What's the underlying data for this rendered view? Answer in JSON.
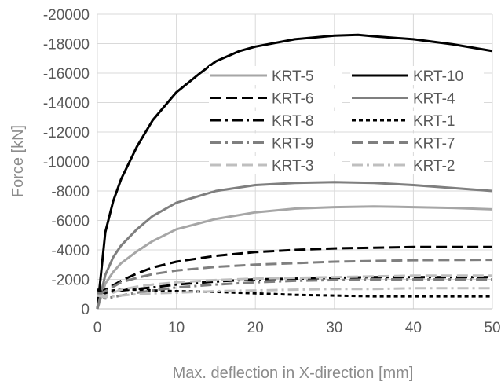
{
  "chart_data": {
    "type": "line",
    "xlabel": "Max. deflection in X-direction [mm]",
    "ylabel": "Force [kN]",
    "xlim": [
      0,
      50
    ],
    "ylim": [
      0,
      -20000
    ],
    "x_ticks": [
      0,
      10,
      20,
      30,
      40,
      50
    ],
    "y_ticks": [
      0,
      -2000,
      -4000,
      -6000,
      -8000,
      -10000,
      -12000,
      -14000,
      -16000,
      -18000,
      -20000
    ],
    "grid": true,
    "legend": "inside-top-right, two columns",
    "series": [
      {
        "name": "KRT-5",
        "color": "#a6a6a6",
        "dash": "solid",
        "width": 3,
        "x": [
          0,
          1,
          2,
          3,
          5,
          7,
          10,
          15,
          20,
          25,
          30,
          35,
          40,
          45,
          50
        ],
        "y": [
          0,
          -1700,
          -2500,
          -3100,
          -3900,
          -4600,
          -5400,
          -6100,
          -6550,
          -6800,
          -6900,
          -6950,
          -6900,
          -6850,
          -6750
        ]
      },
      {
        "name": "KRT-10",
        "color": "#000000",
        "dash": "solid",
        "width": 3,
        "x": [
          0,
          1,
          2,
          3,
          5,
          7,
          10,
          13,
          15,
          18,
          20,
          25,
          30,
          33,
          35,
          40,
          45,
          50
        ],
        "y": [
          0,
          -5200,
          -7300,
          -8800,
          -11000,
          -12800,
          -14700,
          -16000,
          -16800,
          -17500,
          -17800,
          -18300,
          -18550,
          -18600,
          -18500,
          -18300,
          -17950,
          -17500
        ]
      },
      {
        "name": "KRT-6",
        "color": "#000000",
        "dash": "14,6",
        "width": 3,
        "x": [
          0,
          1,
          2,
          3,
          5,
          7,
          10,
          15,
          20,
          25,
          30,
          35,
          40,
          45,
          50
        ],
        "y": [
          -1100,
          -1300,
          -1600,
          -1900,
          -2400,
          -2800,
          -3200,
          -3600,
          -3850,
          -4000,
          -4100,
          -4150,
          -4200,
          -4200,
          -4200
        ]
      },
      {
        "name": "KRT-4",
        "color": "#7f7f7f",
        "dash": "solid",
        "width": 3,
        "x": [
          0,
          1,
          2,
          3,
          5,
          7,
          10,
          15,
          20,
          25,
          30,
          35,
          40,
          45,
          50
        ],
        "y": [
          0,
          -2300,
          -3500,
          -4300,
          -5400,
          -6300,
          -7200,
          -8000,
          -8400,
          -8550,
          -8600,
          -8550,
          -8400,
          -8200,
          -8000
        ]
      },
      {
        "name": "KRT-8",
        "color": "#000000",
        "dash": "14,5,3,5",
        "width": 3,
        "x": [
          0,
          1,
          2,
          3,
          5,
          7,
          10,
          15,
          20,
          25,
          30,
          35,
          40,
          45,
          50
        ],
        "y": [
          -1300,
          -1050,
          -1150,
          -1250,
          -1350,
          -1450,
          -1650,
          -1850,
          -2000,
          -2050,
          -2100,
          -2150,
          -2150,
          -2150,
          -2150
        ]
      },
      {
        "name": "KRT-1",
        "color": "#000000",
        "dash": "5,4",
        "width": 3,
        "x": [
          0,
          1,
          2,
          3,
          5,
          7,
          10,
          15,
          20,
          25,
          30,
          35,
          40,
          45,
          50
        ],
        "y": [
          -1300,
          -1200,
          -1250,
          -1300,
          -1300,
          -1250,
          -1200,
          -1150,
          -1050,
          -950,
          -900,
          -850,
          -850,
          -850,
          -850
        ]
      },
      {
        "name": "KRT-9",
        "color": "#7f7f7f",
        "dash": "14,5,3,5",
        "width": 3,
        "x": [
          0,
          1,
          2,
          3,
          5,
          7,
          10,
          15,
          20,
          25,
          30,
          35,
          40,
          45,
          50
        ],
        "y": [
          -1100,
          -700,
          -800,
          -900,
          -1100,
          -1250,
          -1450,
          -1650,
          -1800,
          -1900,
          -1950,
          -2000,
          -2000,
          -2000,
          -2000
        ]
      },
      {
        "name": "KRT-7",
        "color": "#7f7f7f",
        "dash": "14,6",
        "width": 3,
        "x": [
          0,
          1,
          2,
          3,
          5,
          7,
          10,
          15,
          20,
          25,
          30,
          35,
          40,
          45,
          50
        ],
        "y": [
          -1000,
          -1200,
          -1500,
          -1800,
          -2100,
          -2350,
          -2600,
          -2850,
          -3000,
          -3100,
          -3200,
          -3250,
          -3300,
          -3320,
          -3330
        ]
      },
      {
        "name": "KRT-3",
        "color": "#bfbfbf",
        "dash": "14,6",
        "width": 3,
        "x": [
          0,
          1,
          2,
          3,
          5,
          7,
          10,
          15,
          20,
          25,
          30,
          35,
          40,
          45,
          50
        ],
        "y": [
          -900,
          -900,
          -1100,
          -1300,
          -1500,
          -1650,
          -1800,
          -1950,
          -2050,
          -2100,
          -2150,
          -2200,
          -2250,
          -2250,
          -2250
        ]
      },
      {
        "name": "KRT-2",
        "color": "#bfbfbf",
        "dash": "14,5,3,5",
        "width": 3,
        "x": [
          0,
          1,
          2,
          3,
          5,
          7,
          10,
          15,
          20,
          25,
          30,
          35,
          40,
          45,
          50
        ],
        "y": [
          -900,
          -800,
          -850,
          -900,
          -1000,
          -1050,
          -1100,
          -1200,
          -1250,
          -1300,
          -1350,
          -1350,
          -1400,
          -1400,
          -1400
        ]
      }
    ]
  }
}
